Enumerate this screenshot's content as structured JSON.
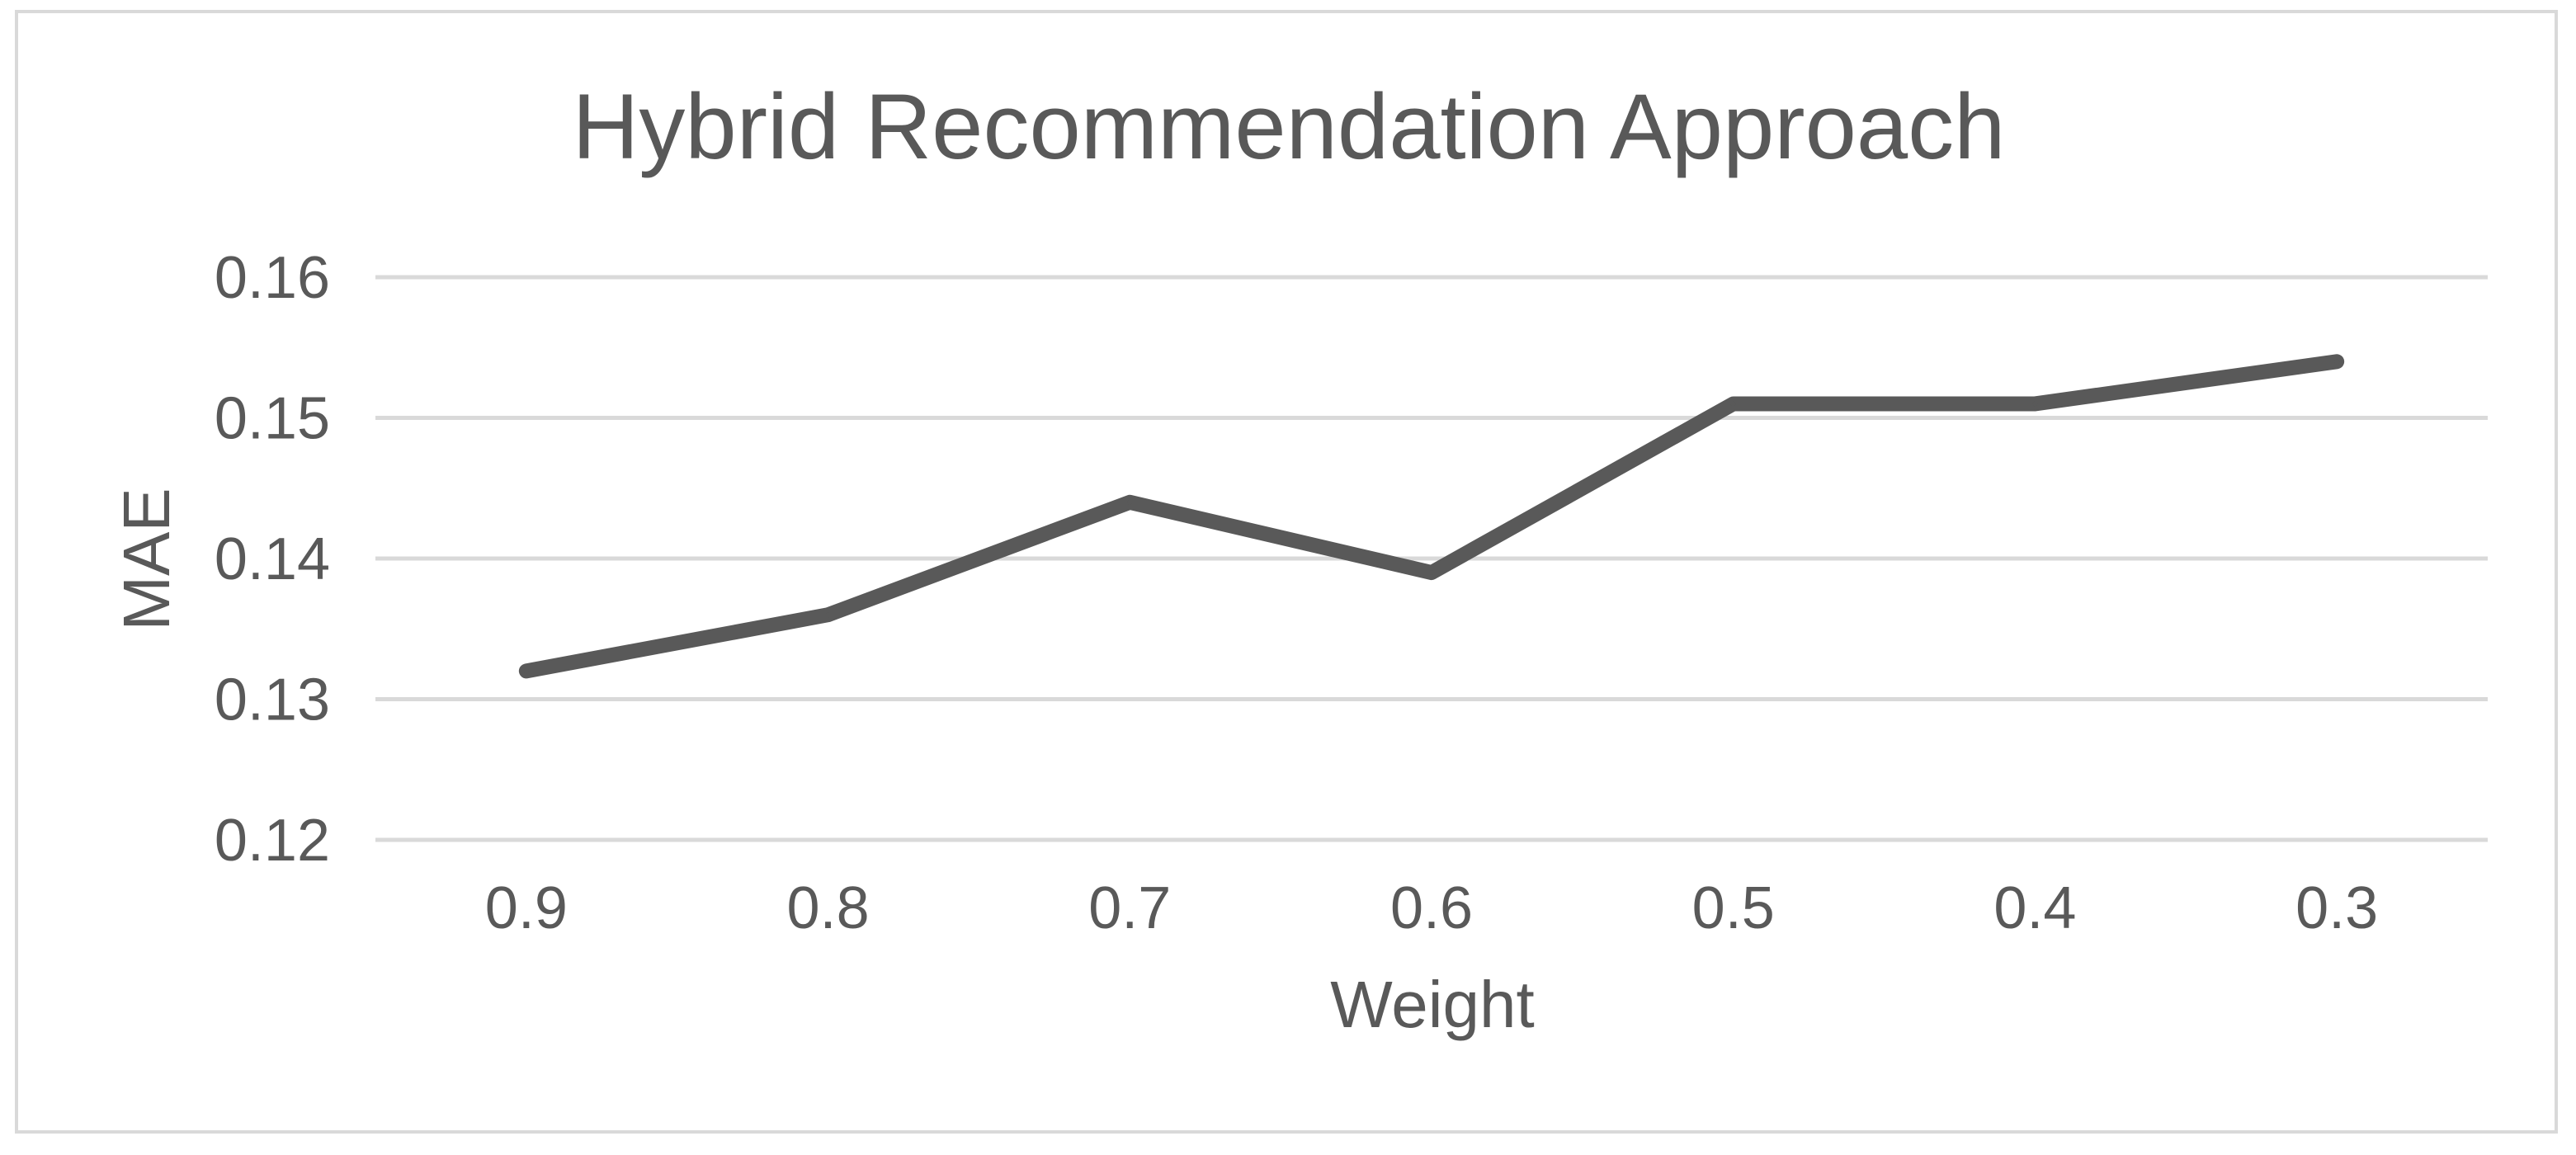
{
  "chart_data": {
    "type": "line",
    "title": "Hybrid Recommendation Approach",
    "xlabel": "Weight",
    "ylabel": "MAE",
    "categories": [
      "0.9",
      "0.8",
      "0.7",
      "0.6",
      "0.5",
      "0.4",
      "0.3"
    ],
    "series": [
      {
        "name": "",
        "values": [
          0.132,
          0.136,
          0.144,
          0.139,
          0.151,
          0.151,
          0.154
        ]
      }
    ],
    "ylim": [
      0.12,
      0.16
    ],
    "yticks": [
      "0.12",
      "0.13",
      "0.14",
      "0.15",
      "0.16"
    ],
    "grid": true,
    "legend": "none",
    "colors": {
      "line": "#595959",
      "grid": "#d9d9d9",
      "text": "#595959",
      "frame": "#d9d9d9"
    }
  }
}
